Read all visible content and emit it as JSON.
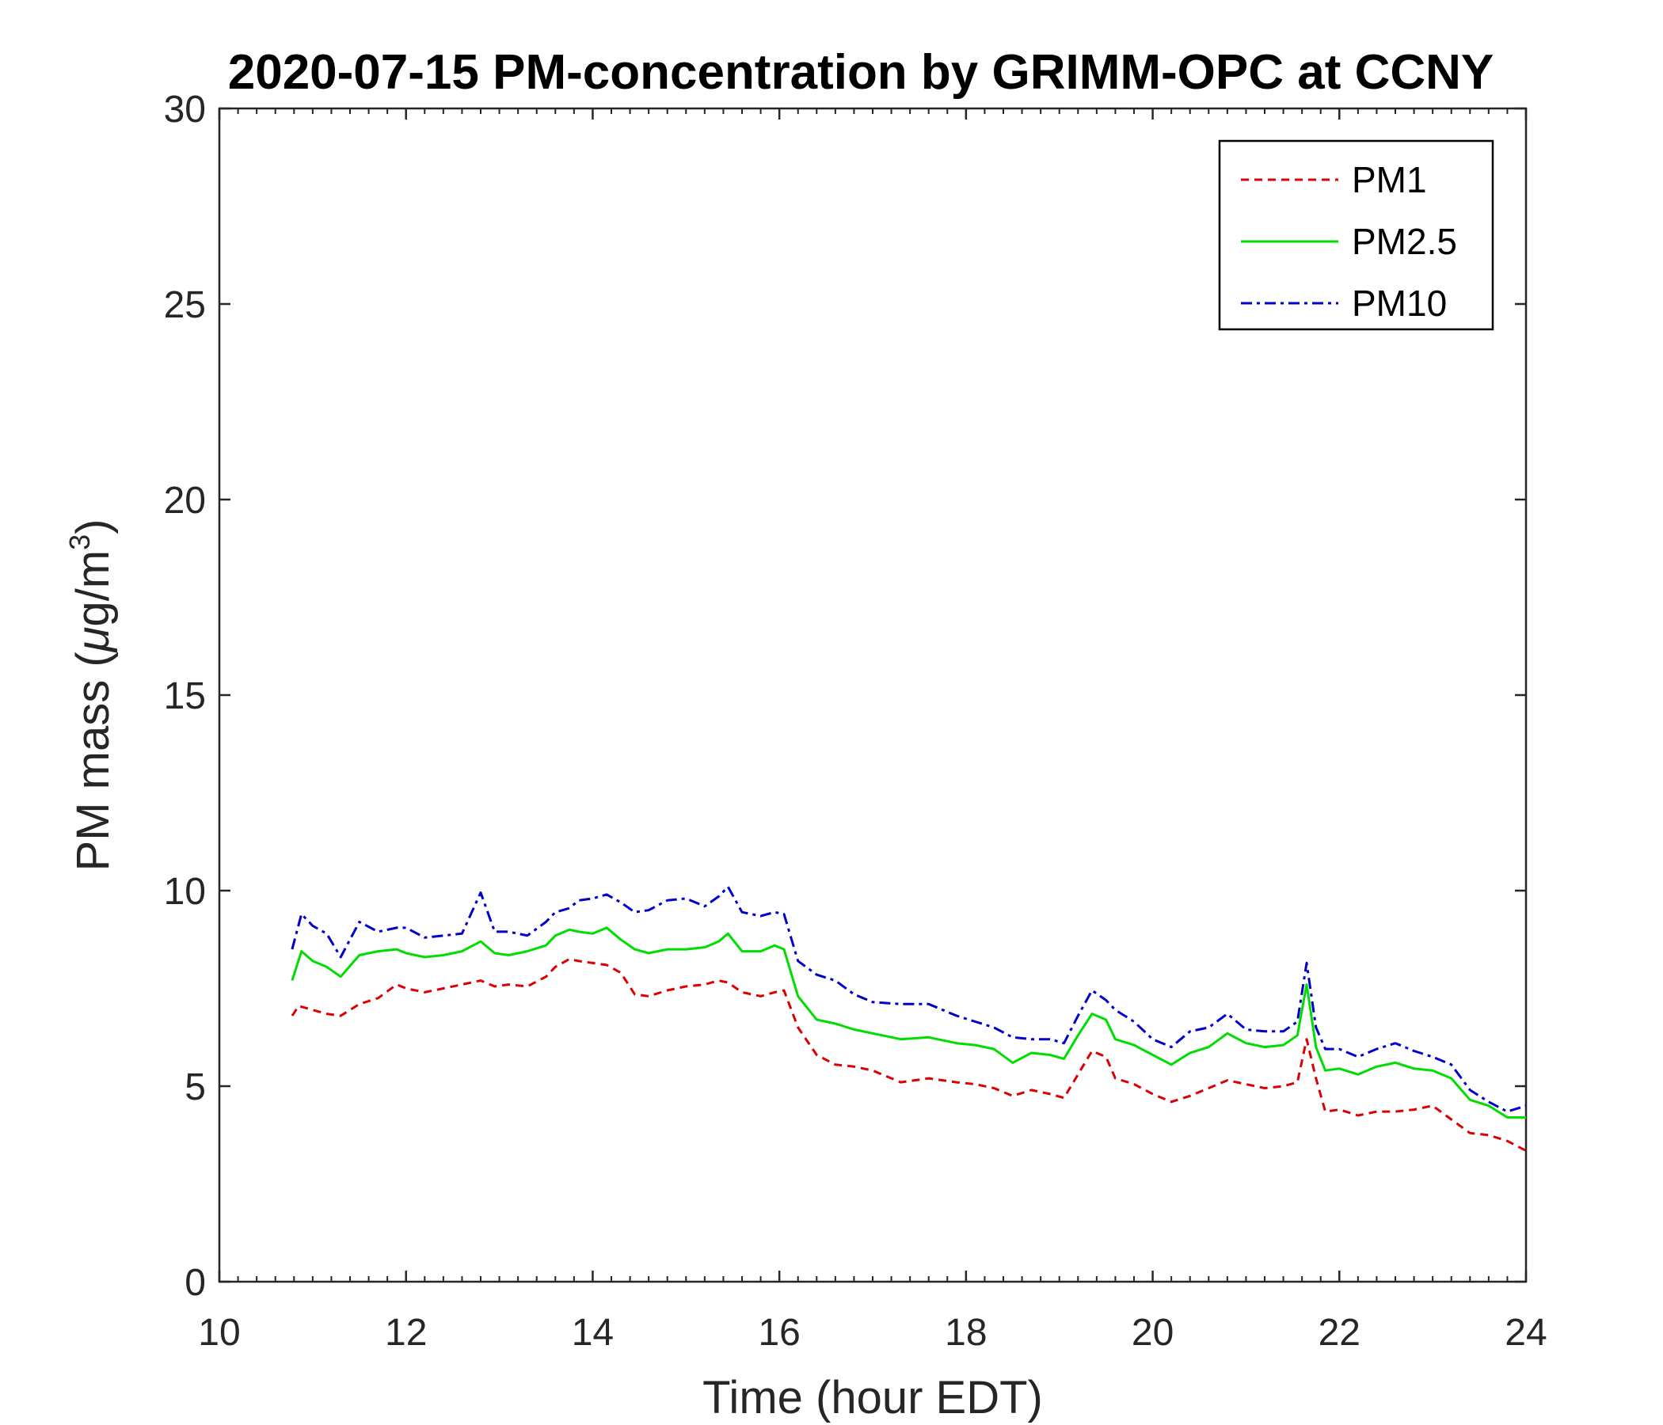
{
  "chart_data": {
    "type": "line",
    "title": "2020-07-15 PM-concentration by GRIMM-OPC at CCNY",
    "xlabel": "Time (hour EDT)",
    "ylabel": "PM mass (μg/m³)",
    "ylabel_parts": {
      "main": "PM mass (",
      "mu": "μ",
      "unit": "g/m",
      "sup": "3",
      "close": ")"
    },
    "xlim": [
      10,
      24
    ],
    "ylim": [
      0,
      30
    ],
    "xticks": [
      10,
      12,
      14,
      16,
      18,
      20,
      22,
      24
    ],
    "yticks": [
      0,
      5,
      10,
      15,
      20,
      25,
      30
    ],
    "grid": false,
    "legend_position": "top-right",
    "series": [
      {
        "name": "PM1",
        "color": "#dd0000",
        "dash": "dashed",
        "x": [
          10.78,
          10.85,
          11.0,
          11.15,
          11.3,
          11.5,
          11.7,
          11.9,
          12.0,
          12.2,
          12.4,
          12.6,
          12.8,
          12.95,
          13.1,
          13.3,
          13.5,
          13.6,
          13.75,
          13.85,
          14.0,
          14.15,
          14.3,
          14.45,
          14.6,
          14.8,
          15.0,
          15.2,
          15.35,
          15.45,
          15.6,
          15.8,
          15.95,
          16.05,
          16.2,
          16.4,
          16.6,
          16.8,
          17.0,
          17.3,
          17.6,
          17.9,
          18.1,
          18.3,
          18.5,
          18.7,
          18.9,
          19.05,
          19.2,
          19.35,
          19.5,
          19.6,
          19.8,
          20.0,
          20.2,
          20.4,
          20.6,
          20.8,
          21.0,
          21.2,
          21.4,
          21.55,
          21.65,
          21.75,
          21.85,
          22.0,
          22.2,
          22.4,
          22.6,
          22.8,
          23.0,
          23.2,
          23.4,
          23.6,
          23.8,
          24.0
        ],
        "y": [
          6.8,
          7.05,
          6.95,
          6.85,
          6.8,
          7.1,
          7.25,
          7.6,
          7.5,
          7.4,
          7.5,
          7.6,
          7.7,
          7.55,
          7.6,
          7.55,
          7.8,
          8.05,
          8.25,
          8.2,
          8.15,
          8.1,
          7.9,
          7.35,
          7.3,
          7.45,
          7.55,
          7.6,
          7.7,
          7.65,
          7.4,
          7.3,
          7.4,
          7.45,
          6.5,
          5.8,
          5.55,
          5.5,
          5.4,
          5.1,
          5.2,
          5.1,
          5.05,
          4.95,
          4.75,
          4.9,
          4.8,
          4.7,
          5.3,
          5.9,
          5.75,
          5.2,
          5.05,
          4.8,
          4.6,
          4.75,
          4.95,
          5.15,
          5.05,
          4.95,
          5.0,
          5.1,
          6.2,
          5.2,
          4.35,
          4.4,
          4.25,
          4.35,
          4.35,
          4.4,
          4.5,
          4.15,
          3.8,
          3.75,
          3.6,
          3.35
        ]
      },
      {
        "name": "PM2.5",
        "color": "#00dd00",
        "dash": "solid",
        "x": [
          10.78,
          10.88,
          11.0,
          11.15,
          11.3,
          11.5,
          11.7,
          11.9,
          12.0,
          12.2,
          12.4,
          12.6,
          12.8,
          12.95,
          13.1,
          13.3,
          13.5,
          13.6,
          13.75,
          13.85,
          14.0,
          14.15,
          14.3,
          14.45,
          14.6,
          14.8,
          15.0,
          15.2,
          15.35,
          15.45,
          15.6,
          15.8,
          15.95,
          16.05,
          16.2,
          16.4,
          16.6,
          16.8,
          17.0,
          17.3,
          17.6,
          17.9,
          18.1,
          18.3,
          18.5,
          18.7,
          18.9,
          19.05,
          19.2,
          19.35,
          19.5,
          19.6,
          19.8,
          20.0,
          20.2,
          20.4,
          20.6,
          20.8,
          21.0,
          21.2,
          21.4,
          21.55,
          21.65,
          21.75,
          21.85,
          22.0,
          22.2,
          22.4,
          22.6,
          22.8,
          23.0,
          23.2,
          23.4,
          23.6,
          23.8,
          24.0
        ],
        "y": [
          7.7,
          8.45,
          8.2,
          8.05,
          7.8,
          8.35,
          8.45,
          8.5,
          8.4,
          8.3,
          8.35,
          8.45,
          8.7,
          8.4,
          8.35,
          8.45,
          8.6,
          8.85,
          9.0,
          8.95,
          8.9,
          9.05,
          8.75,
          8.5,
          8.4,
          8.5,
          8.5,
          8.55,
          8.7,
          8.9,
          8.45,
          8.45,
          8.6,
          8.5,
          7.3,
          6.7,
          6.6,
          6.45,
          6.35,
          6.2,
          6.25,
          6.1,
          6.05,
          5.95,
          5.6,
          5.85,
          5.8,
          5.7,
          6.3,
          6.85,
          6.7,
          6.2,
          6.05,
          5.8,
          5.55,
          5.85,
          6.0,
          6.35,
          6.1,
          6.0,
          6.05,
          6.3,
          7.6,
          6.0,
          5.4,
          5.45,
          5.3,
          5.5,
          5.6,
          5.45,
          5.4,
          5.2,
          4.65,
          4.5,
          4.2,
          4.2
        ]
      },
      {
        "name": "PM10",
        "color": "#0000cc",
        "dash": "dashdot",
        "x": [
          10.78,
          10.88,
          11.0,
          11.15,
          11.3,
          11.5,
          11.7,
          11.9,
          12.0,
          12.2,
          12.4,
          12.6,
          12.8,
          12.95,
          13.1,
          13.3,
          13.5,
          13.6,
          13.75,
          13.85,
          14.0,
          14.15,
          14.3,
          14.45,
          14.6,
          14.8,
          15.0,
          15.2,
          15.35,
          15.45,
          15.6,
          15.8,
          15.95,
          16.05,
          16.2,
          16.4,
          16.6,
          16.8,
          17.0,
          17.3,
          17.6,
          17.9,
          18.1,
          18.3,
          18.5,
          18.7,
          18.9,
          19.05,
          19.2,
          19.35,
          19.5,
          19.6,
          19.8,
          20.0,
          20.2,
          20.4,
          20.6,
          20.8,
          21.0,
          21.2,
          21.4,
          21.55,
          21.65,
          21.75,
          21.85,
          22.0,
          22.2,
          22.4,
          22.6,
          22.8,
          23.0,
          23.2,
          23.4,
          23.6,
          23.8,
          24.0
        ],
        "y": [
          8.5,
          9.4,
          9.1,
          8.9,
          8.3,
          9.2,
          8.95,
          9.05,
          9.05,
          8.8,
          8.85,
          8.9,
          9.95,
          8.95,
          8.95,
          8.85,
          9.2,
          9.45,
          9.55,
          9.75,
          9.8,
          9.9,
          9.7,
          9.45,
          9.5,
          9.75,
          9.8,
          9.6,
          9.85,
          10.1,
          9.45,
          9.35,
          9.45,
          9.4,
          8.2,
          7.85,
          7.7,
          7.35,
          7.15,
          7.1,
          7.1,
          6.8,
          6.65,
          6.5,
          6.25,
          6.2,
          6.2,
          6.1,
          6.8,
          7.45,
          7.2,
          6.95,
          6.65,
          6.2,
          6.0,
          6.4,
          6.5,
          6.85,
          6.45,
          6.4,
          6.4,
          6.65,
          8.15,
          6.5,
          5.95,
          5.95,
          5.75,
          5.95,
          6.1,
          5.9,
          5.75,
          5.55,
          4.9,
          4.6,
          4.35,
          4.5
        ]
      }
    ]
  }
}
